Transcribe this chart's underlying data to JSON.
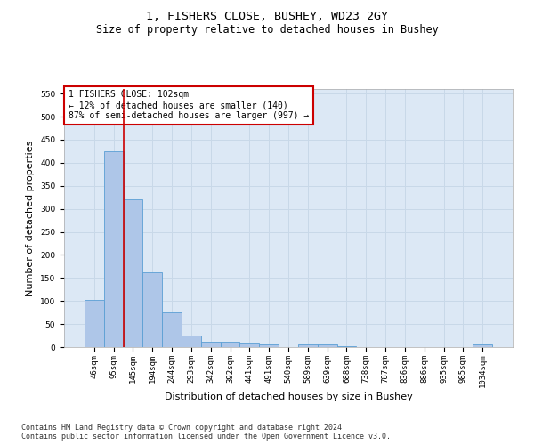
{
  "title_line1": "1, FISHERS CLOSE, BUSHEY, WD23 2GY",
  "title_line2": "Size of property relative to detached houses in Bushey",
  "xlabel": "Distribution of detached houses by size in Bushey",
  "ylabel": "Number of detached properties",
  "categories": [
    "46sqm",
    "95sqm",
    "145sqm",
    "194sqm",
    "244sqm",
    "293sqm",
    "342sqm",
    "392sqm",
    "441sqm",
    "491sqm",
    "540sqm",
    "589sqm",
    "639sqm",
    "688sqm",
    "738sqm",
    "787sqm",
    "836sqm",
    "886sqm",
    "935sqm",
    "985sqm",
    "1034sqm"
  ],
  "values": [
    103,
    425,
    320,
    163,
    75,
    25,
    12,
    12,
    10,
    6,
    0,
    5,
    5,
    2,
    0,
    0,
    0,
    0,
    0,
    0,
    5
  ],
  "bar_color": "#aec6e8",
  "bar_edge_color": "#5a9fd4",
  "grid_color": "#c8d8e8",
  "background_color": "#ffffff",
  "plot_background_color": "#dce8f5",
  "annotation_text": "1 FISHERS CLOSE: 102sqm\n← 12% of detached houses are smaller (140)\n87% of semi-detached houses are larger (997) →",
  "annotation_box_color": "#ffffff",
  "annotation_box_edge": "#cc0000",
  "vline_x": 1.5,
  "vline_color": "#cc0000",
  "ylim": [
    0,
    560
  ],
  "yticks": [
    0,
    50,
    100,
    150,
    200,
    250,
    300,
    350,
    400,
    450,
    500,
    550
  ],
  "footnote": "Contains HM Land Registry data © Crown copyright and database right 2024.\nContains public sector information licensed under the Open Government Licence v3.0.",
  "title_fontsize": 9.5,
  "subtitle_fontsize": 8.5,
  "tick_fontsize": 6.5,
  "ylabel_fontsize": 8,
  "xlabel_fontsize": 8,
  "annot_fontsize": 7
}
